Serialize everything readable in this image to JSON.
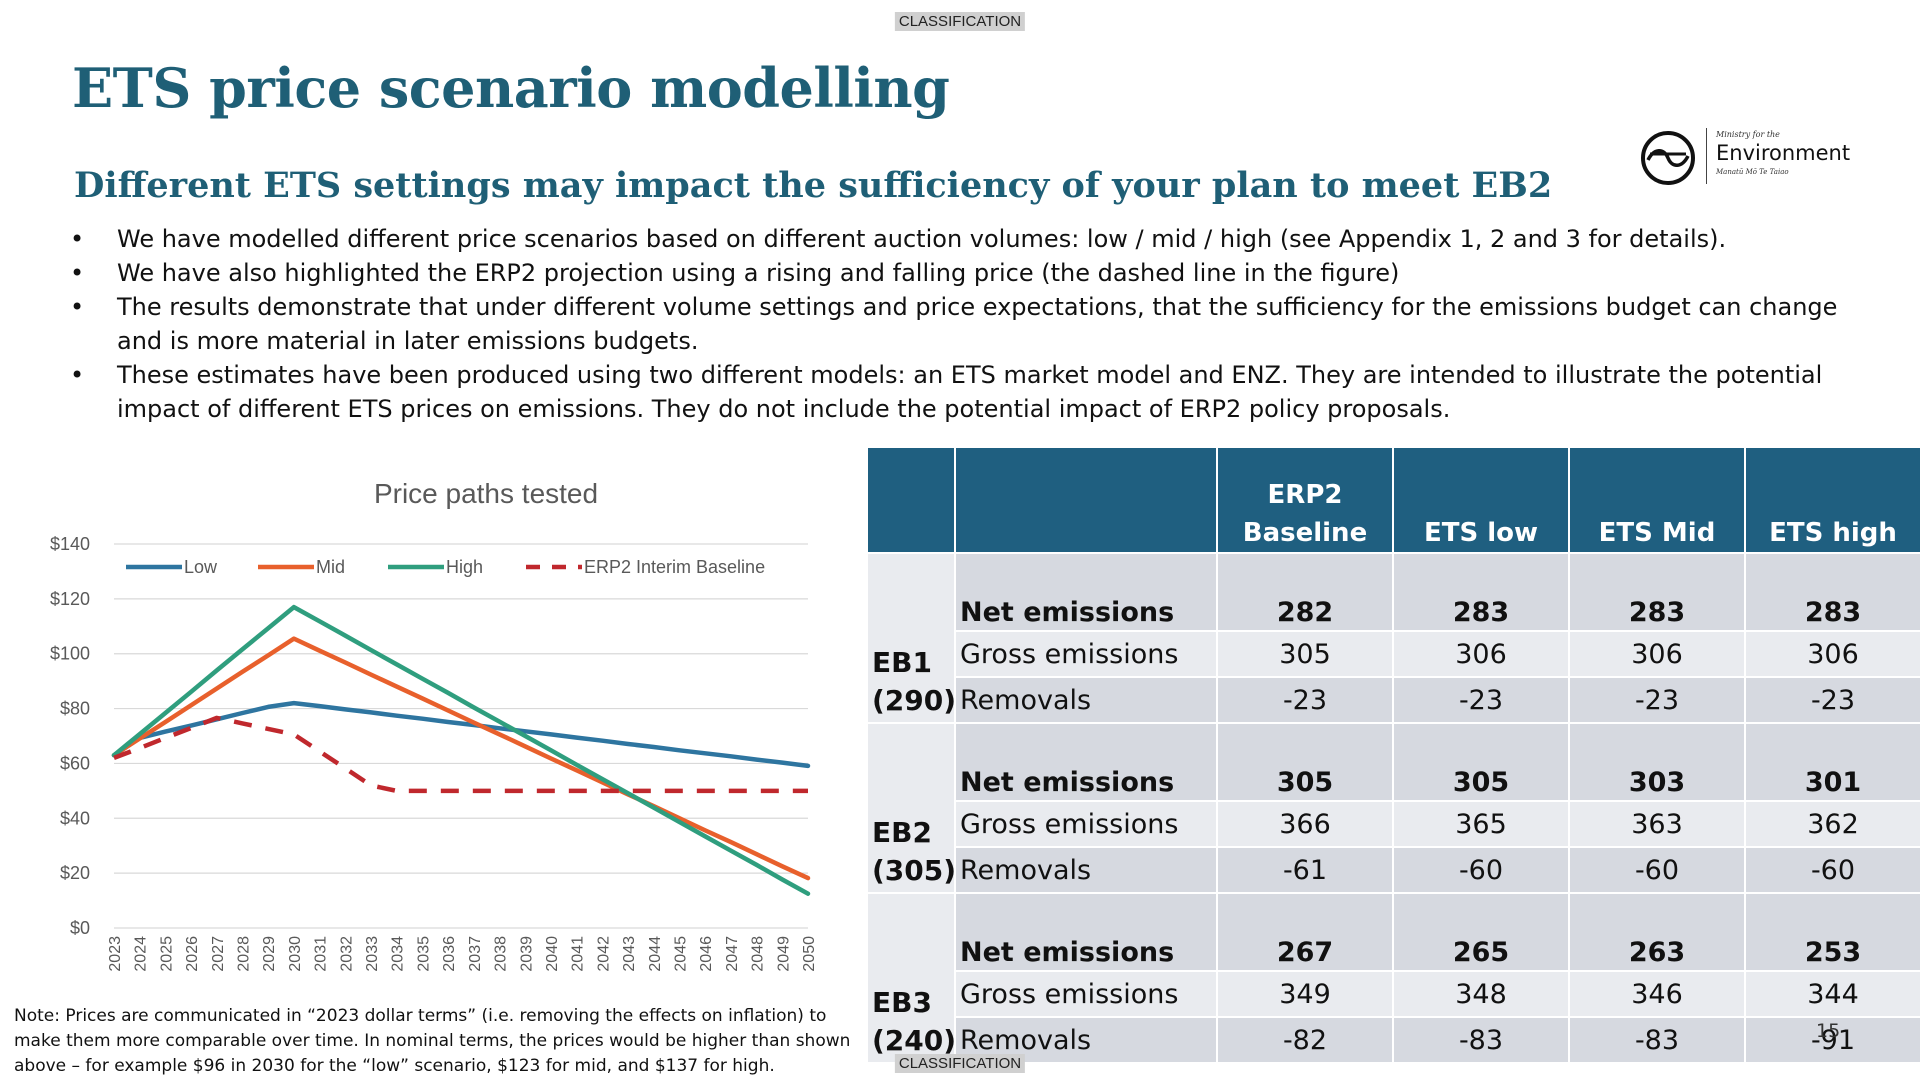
{
  "classification": "CLASSIFICATION",
  "title": "ETS price scenario modelling",
  "subtitle": "Different ETS settings may impact the sufficiency of your plan to meet EB2",
  "logo": {
    "small": "Ministry for the",
    "big": "Environment",
    "maori": "Manatū Mō Te Taiao"
  },
  "bullets": [
    "We have modelled different price scenarios based on different auction volumes: low / mid / high (see Appendix 1, 2 and 3 for details).",
    "We have also highlighted the ERP2 projection using a rising and falling price (the dashed line in the figure)",
    "The results demonstrate that under different volume settings and price expectations, that the sufficiency for the emissions budget can change and is more material in later emissions budgets.",
    "These estimates have been produced using two different models: an ETS market model and ENZ. They are intended to illustrate the potential impact of different ETS prices on emissions. They do not include the potential impact of ERP2 policy proposals."
  ],
  "chart_data": {
    "type": "line",
    "title": "Price paths tested",
    "xlabel": "",
    "ylabel": "",
    "ylim": [
      0,
      140
    ],
    "y_ticks": [
      "$0",
      "$20",
      "$40",
      "$60",
      "$80",
      "$100",
      "$120",
      "$140"
    ],
    "grid": true,
    "legend": "top",
    "x": [
      2023,
      2024,
      2025,
      2026,
      2027,
      2028,
      2029,
      2030,
      2031,
      2032,
      2033,
      2034,
      2035,
      2036,
      2037,
      2038,
      2039,
      2040,
      2041,
      2042,
      2043,
      2044,
      2045,
      2046,
      2047,
      2048,
      2049,
      2050
    ],
    "series": [
      {
        "name": "Low",
        "color": "#2e75a0",
        "dashed": false,
        "values": [
          63,
          69.3,
          71.6,
          73.8,
          76.1,
          78.4,
          80.6,
          82.0,
          80.9,
          79.7,
          78.6,
          77.4,
          76.3,
          75.1,
          74.0,
          72.8,
          71.7,
          70.6,
          69.4,
          68.3,
          67.1,
          66.0,
          64.8,
          63.7,
          62.6,
          61.4,
          60.3,
          59.1
        ]
      },
      {
        "name": "Mid",
        "color": "#e8602c",
        "dashed": false,
        "values": [
          63,
          69.1,
          75.1,
          81.2,
          87.3,
          93.4,
          99.4,
          105.5,
          101.1,
          96.8,
          92.4,
          88.0,
          83.7,
          79.3,
          74.9,
          70.6,
          66.2,
          61.8,
          57.5,
          53.1,
          48.7,
          44.4,
          40.0,
          35.6,
          31.3,
          26.9,
          22.5,
          18.2
        ]
      },
      {
        "name": "High",
        "color": "#2f9e7e",
        "dashed": false,
        "values": [
          63,
          70.7,
          78.4,
          86.1,
          93.9,
          101.6,
          109.3,
          117.0,
          111.8,
          106.6,
          101.3,
          96.1,
          90.9,
          85.7,
          80.4,
          75.2,
          70.0,
          64.8,
          59.5,
          54.3,
          49.1,
          43.9,
          38.6,
          33.4,
          28.2,
          23.0,
          17.7,
          12.5
        ]
      },
      {
        "name": "ERP2 Interim Baseline",
        "color": "#c0282d",
        "dashed": true,
        "values": [
          62,
          65.6,
          69.3,
          72.9,
          76.6,
          74.6,
          72.6,
          70.6,
          64.4,
          58.2,
          52.0,
          50,
          50,
          50,
          50,
          50,
          50,
          50,
          50,
          50,
          50,
          50,
          50,
          50,
          50,
          50,
          50,
          50
        ]
      }
    ]
  },
  "note": "Note: Prices are communicated in “2023 dollar terms” (i.e. removing the effects on inflation) to make them more comparable over time. In nominal terms, the prices would be higher than shown above – for example $96 in 2030 for the “low” scenario, $123 for mid, and $137 for high.",
  "table": {
    "headers": [
      "",
      "",
      "ERP2 Baseline",
      "ETS low",
      "ETS Mid",
      "ETS high"
    ],
    "budgets": [
      {
        "name": "EB1 (290)",
        "rows": [
          {
            "label": "Net emissions",
            "values": [
              "282",
              "283",
              "283",
              "283"
            ]
          },
          {
            "label": "Gross emissions",
            "values": [
              "305",
              "306",
              "306",
              "306"
            ]
          },
          {
            "label": "Removals",
            "values": [
              "-23",
              "-23",
              "-23",
              "-23"
            ]
          }
        ]
      },
      {
        "name": "EB2 (305)",
        "rows": [
          {
            "label": "Net emissions",
            "values": [
              "305",
              "305",
              "303",
              "301"
            ]
          },
          {
            "label": "Gross emissions",
            "values": [
              "366",
              "365",
              "363",
              "362"
            ]
          },
          {
            "label": "Removals",
            "values": [
              "-61",
              "-60",
              "-60",
              "-60"
            ]
          }
        ]
      },
      {
        "name": "EB3 (240)",
        "rows": [
          {
            "label": "Net emissions",
            "values": [
              "267",
              "265",
              "263",
              "253"
            ]
          },
          {
            "label": "Gross emissions",
            "values": [
              "349",
              "348",
              "346",
              "344"
            ]
          },
          {
            "label": "Removals",
            "values": [
              "-82",
              "-83",
              "-83",
              "-91"
            ]
          }
        ]
      }
    ]
  },
  "page_number": "15"
}
